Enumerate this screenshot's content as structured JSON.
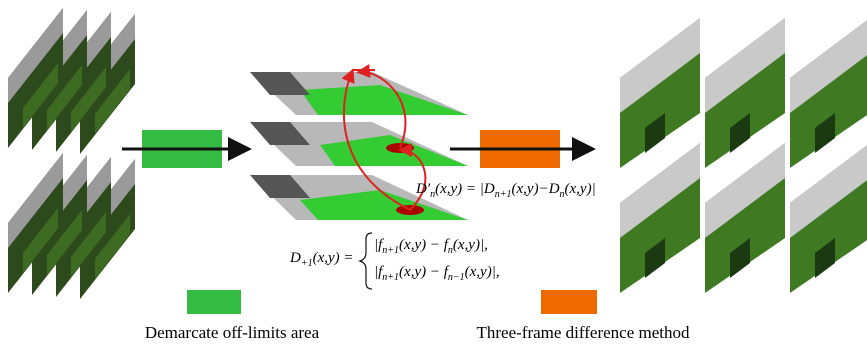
{
  "formula_difference": [
    "D′",
    "n",
    "(x,y) = |D",
    "n+1",
    "(x,y)−D",
    "n",
    "(x,y)|"
  ],
  "formula_frames": {
    "lhs": [
      "D",
      "+1",
      "(x,y) ="
    ],
    "case_1": [
      "|f",
      "n+1",
      "(x,y) − f",
      "n",
      "(x,y)|,"
    ],
    "case_2": [
      "|f",
      "n+1",
      "(x,y) − f",
      "n−1",
      "(x,y)|,"
    ]
  },
  "legend": {
    "demarcate": "Demarcate off-limits area",
    "three_frame": "Three-frame difference method"
  }
}
